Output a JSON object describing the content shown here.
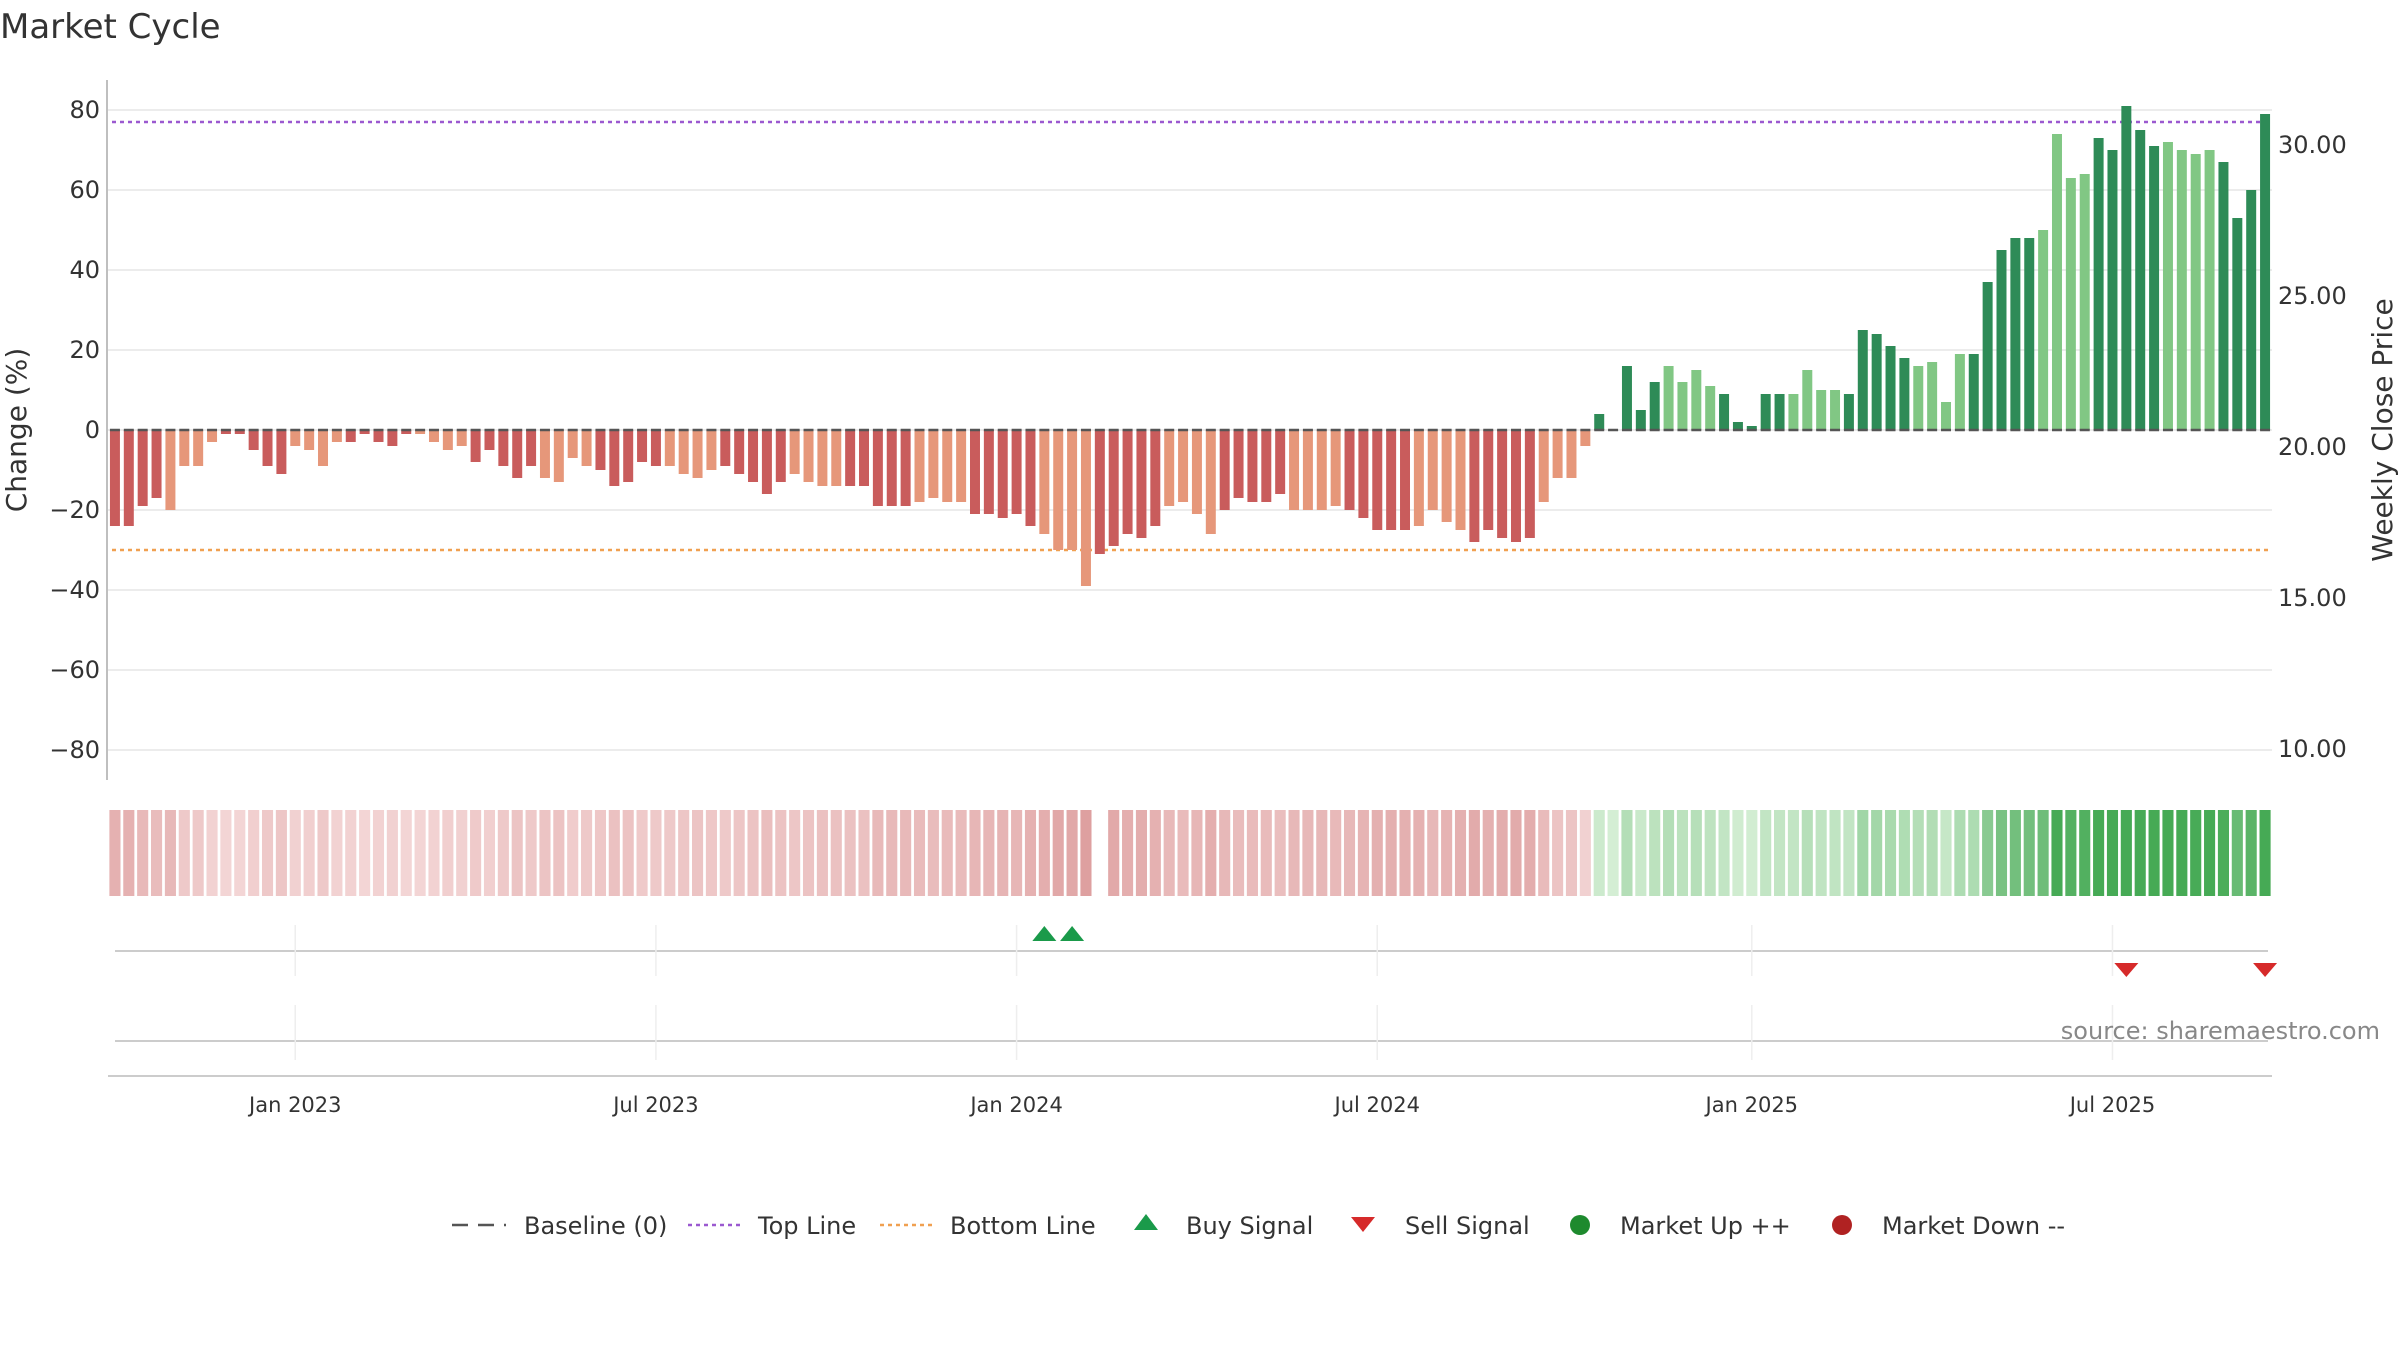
{
  "chart_data": {
    "type": "bar",
    "title": "Market Cycle",
    "source": "source: sharemaestro.com",
    "y_left": {
      "label": "Change (%)",
      "ticks": [
        80,
        60,
        40,
        20,
        0,
        -20,
        -40,
        -60,
        -80
      ],
      "tick_labels": [
        "80",
        "60",
        "40",
        "20",
        "0",
        "−20",
        "−40",
        "−60",
        "−80"
      ],
      "range": [
        -88,
        88
      ]
    },
    "y_right": {
      "label": "Weekly Close Price",
      "ticks": [
        30,
        25,
        20,
        15,
        10
      ],
      "tick_labels": [
        "30.00",
        "25.00",
        "20.00",
        "15.00",
        "10.00"
      ]
    },
    "x_axis": {
      "start": "2022-10-03",
      "end": "2025-09-22",
      "tick_dates": [
        "2023-01-02",
        "2023-07-03",
        "2024-01-01",
        "2024-07-01",
        "2025-01-06",
        "2025-07-07"
      ],
      "tick_labels": [
        "Jan 2023",
        "Jul 2023",
        "Jan 2024",
        "Jul 2024",
        "Jan 2025",
        "Jul 2025"
      ]
    },
    "reference_lines": {
      "top_line": 77,
      "bottom_line": -30,
      "baseline": 0
    },
    "series": [
      {
        "name": "Change (%)",
        "values": [
          -24,
          -24,
          -19,
          -17,
          -20,
          -9,
          -9,
          -3,
          -1,
          -1,
          -5,
          -9,
          -11,
          -4,
          -5,
          -9,
          -3,
          -3,
          -1,
          -3,
          -4,
          -1,
          -1,
          -3,
          -5,
          -4,
          -8,
          -5,
          -9,
          -12,
          -9,
          -12,
          -13,
          -7,
          -9,
          -10,
          -14,
          -13,
          -8,
          -9,
          -9,
          -11,
          -12,
          -10,
          -9,
          -11,
          -13,
          -16,
          -13,
          -11,
          -13,
          -14,
          -14,
          -14,
          -14,
          -19,
          -19,
          -19,
          -18,
          -17,
          -18,
          -18,
          -21,
          -21,
          -22,
          -21,
          -24,
          -26,
          -30,
          -30,
          -39,
          -31,
          -29,
          -26,
          -27,
          -24,
          -19,
          -18,
          -21,
          -26,
          -20,
          -17,
          -18,
          -18,
          -16,
          -20,
          -20,
          -20,
          -19,
          -20,
          -22,
          -25,
          -25,
          -25,
          -24,
          -20,
          -23,
          -25,
          -28,
          -25,
          -27,
          -28,
          -27,
          -18,
          -12,
          -12,
          -4,
          4,
          0,
          16,
          5,
          12,
          16,
          12,
          15,
          11,
          9,
          2,
          1,
          9,
          9,
          9,
          15,
          10,
          10,
          9,
          25,
          24,
          21,
          18,
          16,
          17,
          7,
          19,
          19,
          37,
          45,
          48,
          48,
          50,
          74,
          63,
          64,
          73,
          70,
          81,
          75,
          71,
          72,
          70,
          69,
          70,
          67,
          53,
          60,
          79
        ]
      }
    ],
    "buy_signals": [
      "2024-01-15",
      "2024-01-29"
    ],
    "sell_signals": [
      "2025-07-14",
      "2025-09-22"
    ],
    "colors": {
      "neg_dark": "#c95c5c",
      "neg_light": "#e6977a",
      "pos_dark": "#2e8b57",
      "pos_light": "#81c784",
      "top_line": "#9b59d0",
      "bottom_line": "#f0a050",
      "baseline": "#555555",
      "buy": "#1a9a4a",
      "sell": "#d62a2a",
      "market_up": "#1e8a2e",
      "market_down": "#b02222",
      "grid": "#e6e6e6"
    },
    "legend": [
      {
        "key": "baseline",
        "label": "Baseline (0)"
      },
      {
        "key": "top",
        "label": "Top Line"
      },
      {
        "key": "bottom",
        "label": "Bottom Line"
      },
      {
        "key": "buy",
        "label": "Buy Signal"
      },
      {
        "key": "sell",
        "label": "Sell Signal"
      },
      {
        "key": "up",
        "label": "Market Up ++"
      },
      {
        "key": "down",
        "label": "Market Down --"
      }
    ]
  }
}
